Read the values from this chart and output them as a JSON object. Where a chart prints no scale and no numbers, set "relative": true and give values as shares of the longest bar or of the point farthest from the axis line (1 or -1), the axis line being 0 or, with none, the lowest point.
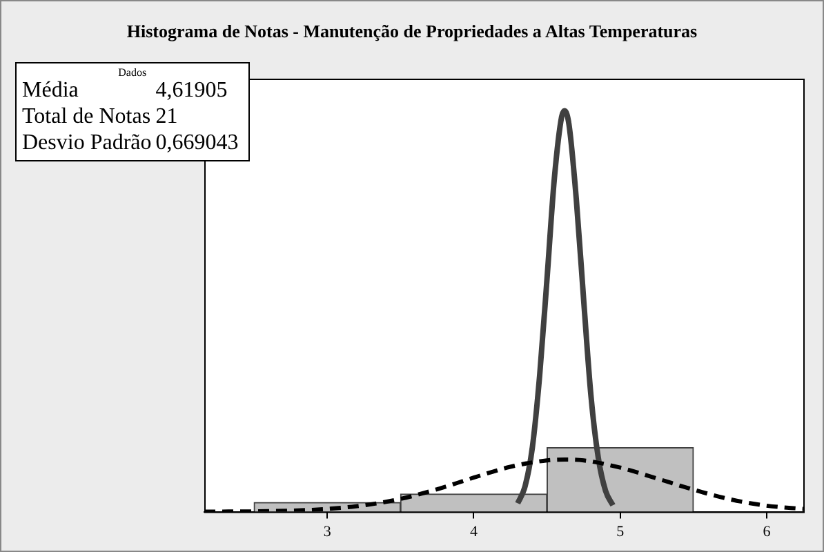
{
  "chart_data": {
    "type": "histogram",
    "title": "Histograma de Notas - Manutenção de Propriedades a Altas Temperaturas",
    "relative": true,
    "bins": [
      2.5,
      3.5,
      4.5,
      5.5
    ],
    "values": [
      0.023,
      0.044,
      0.16
    ],
    "color": "#c0c0c0",
    "xlim": [
      2.16,
      6.25
    ],
    "xticks": [
      3,
      4,
      5,
      6
    ],
    "grid": false,
    "legend": false,
    "annotations": [
      "Dados",
      "Média",
      "4,61905",
      "Total de Notas",
      "21",
      "Desvio Padrão",
      "0,669043"
    ],
    "series": [
      {
        "type": "line",
        "color": "#000000",
        "line_style": "dashed",
        "marker": "none",
        "x": [
          2.16,
          2.5,
          2.75,
          3.0,
          3.25,
          3.5,
          3.75,
          4.0,
          4.25,
          4.5,
          4.62,
          4.75,
          5.0,
          5.25,
          5.5,
          5.75,
          6.0,
          6.25
        ],
        "values": [
          0.0002,
          0.0009,
          0.0027,
          0.0069,
          0.016,
          0.032,
          0.056,
          0.085,
          0.112,
          0.128,
          0.13,
          0.128,
          0.11,
          0.083,
          0.055,
          0.031,
          0.015,
          0.007
        ]
      },
      {
        "type": "line",
        "color": "#404040",
        "line_style": "solid",
        "marker": "none",
        "x": [
          4.3,
          4.35,
          4.4,
          4.45,
          4.5,
          4.55,
          4.6,
          4.62,
          4.65,
          4.7,
          4.75,
          4.8,
          4.85,
          4.9,
          4.95
        ],
        "values": [
          0.021,
          0.063,
          0.16,
          0.34,
          0.58,
          0.83,
          0.985,
          1,
          0.966,
          0.78,
          0.53,
          0.29,
          0.135,
          0.052,
          0.016
        ]
      }
    ]
  }
}
